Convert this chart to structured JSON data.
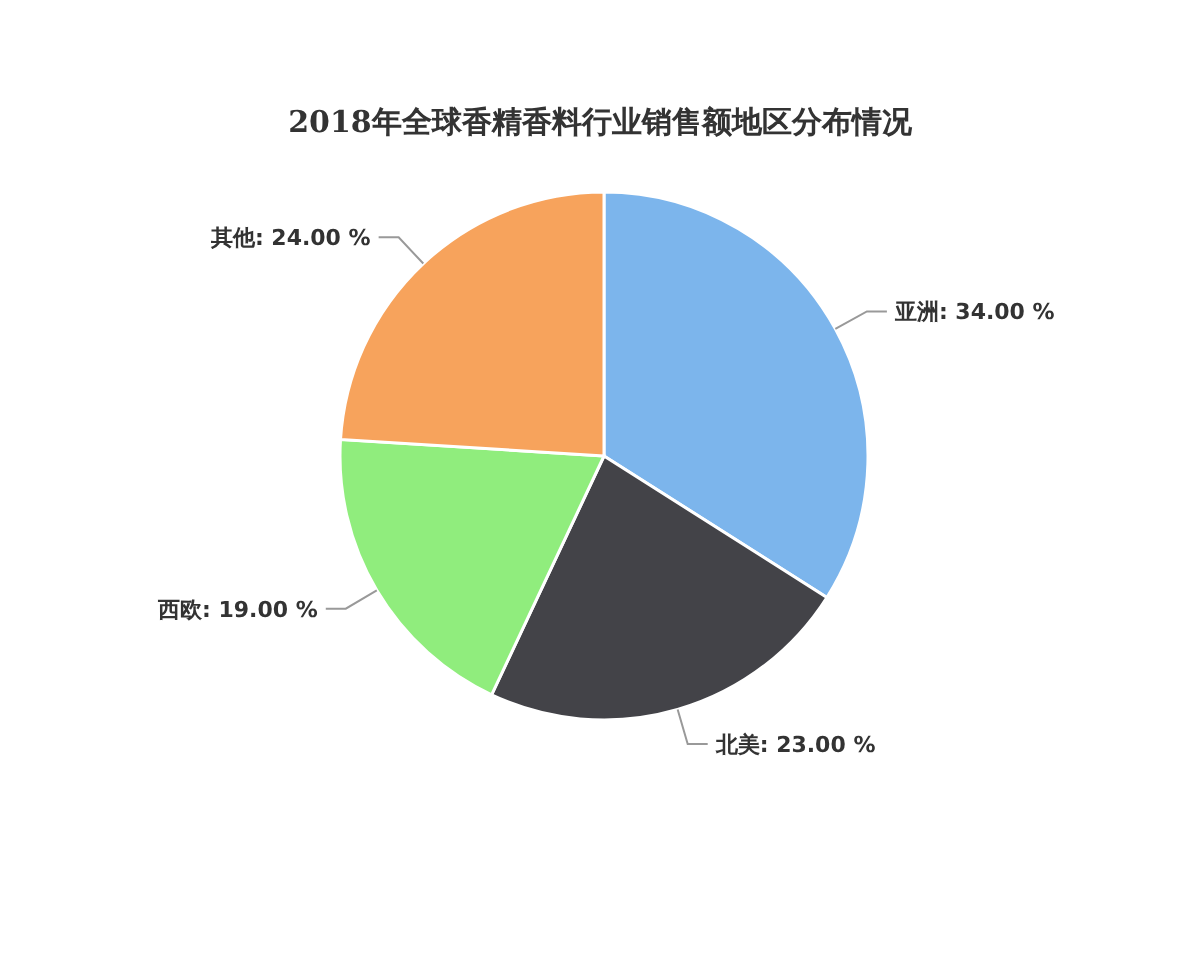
{
  "chart_data": {
    "type": "pie",
    "title": "2018年全球香精香料行业销售额地区分布情况",
    "categories": [
      "亚洲",
      "北美",
      "西欧",
      "其他"
    ],
    "values": [
      34,
      23,
      19,
      24
    ],
    "colors": [
      "#7cb5ec",
      "#434348",
      "#90ed7d",
      "#f7a35c"
    ],
    "value_labels": [
      "34.00 %",
      "23.00 %",
      "19.00 %",
      "24.00 %"
    ]
  }
}
